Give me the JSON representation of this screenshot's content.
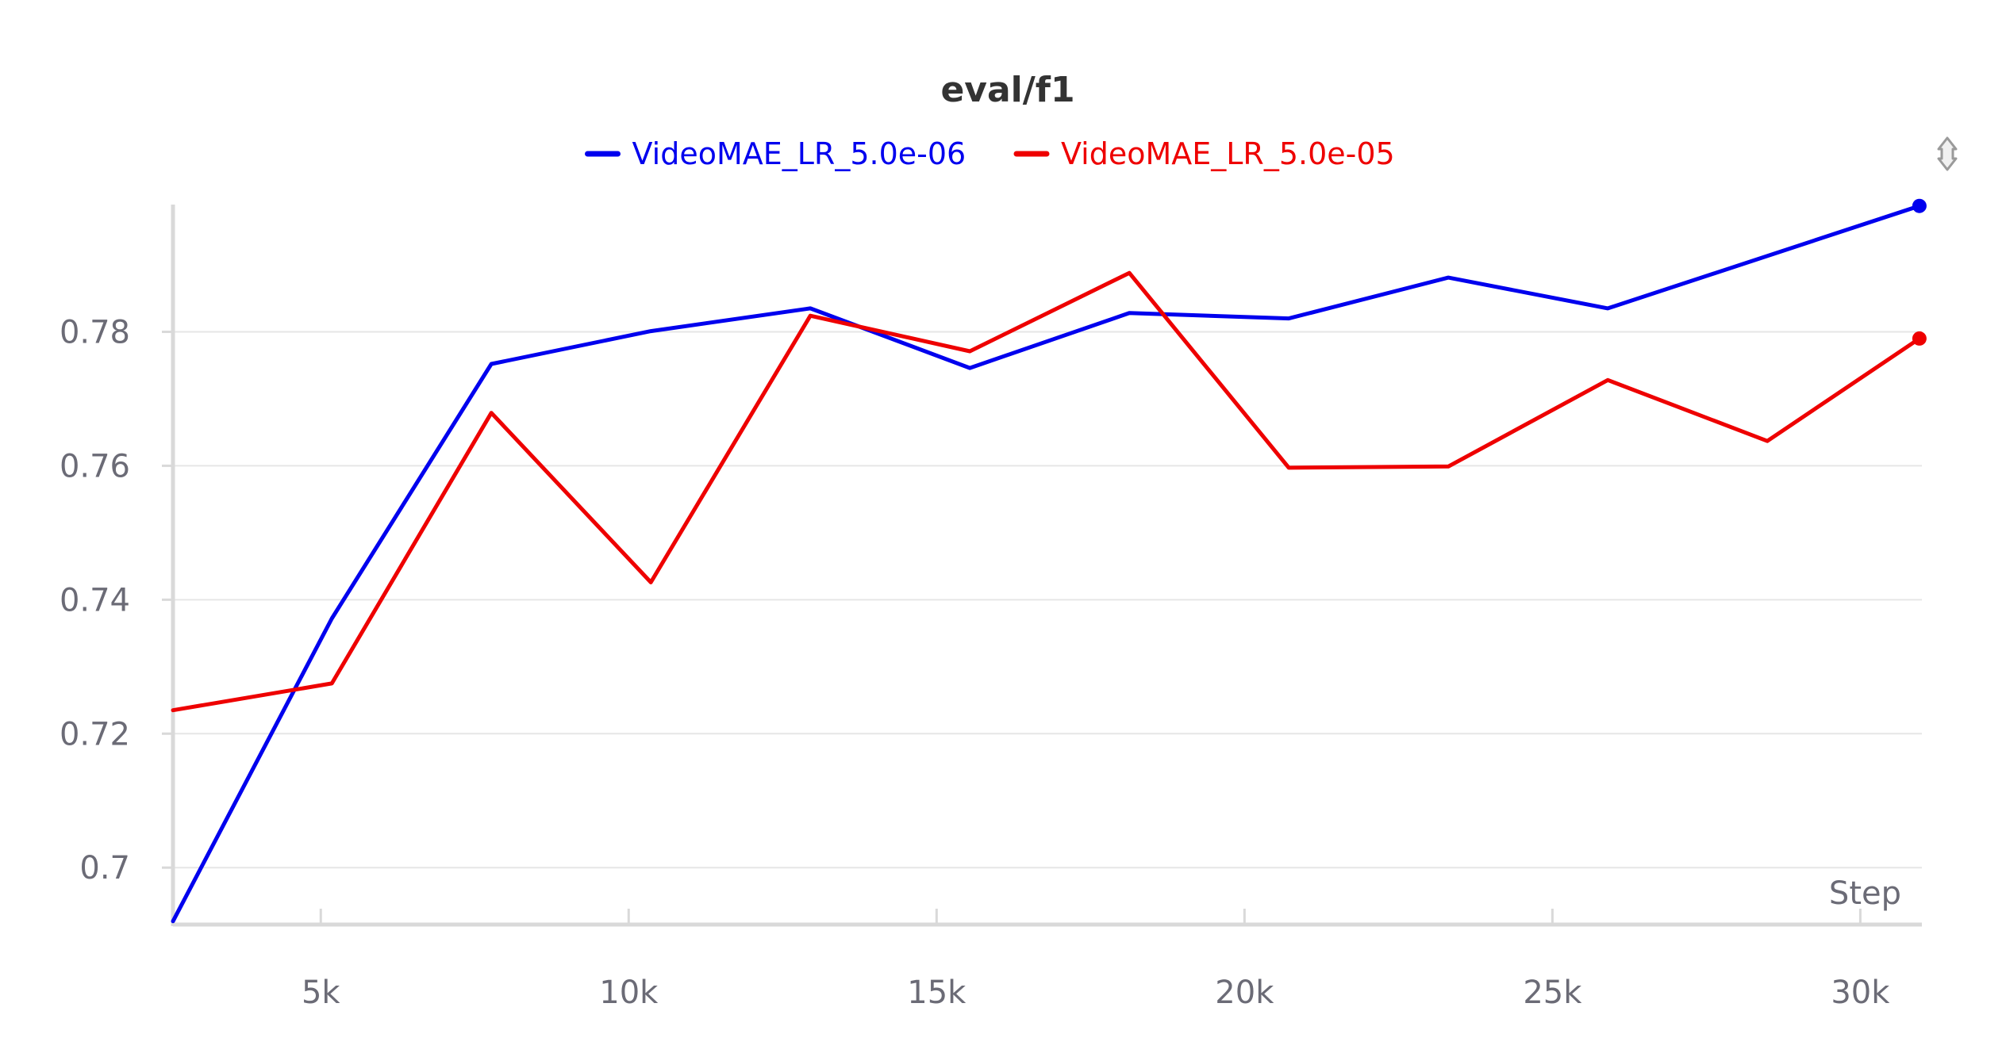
{
  "chart_data": {
    "type": "line",
    "title": "eval/f1",
    "xlabel": "Step",
    "ylabel": "",
    "xlim": [
      2600,
      31000
    ],
    "ylim": [
      0.6915,
      0.799
    ],
    "x_ticks": [
      5000,
      10000,
      15000,
      20000,
      25000,
      30000
    ],
    "x_tick_labels": [
      "5k",
      "10k",
      "15k",
      "20k",
      "25k",
      "30k"
    ],
    "y_ticks": [
      0.7,
      0.72,
      0.74,
      0.76,
      0.78
    ],
    "y_tick_labels": [
      "0.7",
      "0.72",
      "0.74",
      "0.76",
      "0.78"
    ],
    "grid": "horizontal",
    "legend_position": "top-center",
    "series": [
      {
        "name": "VideoMAE_LR_5.0e-06",
        "color": "#0000ee",
        "x": [
          2600,
          5180,
          7770,
          10360,
          12950,
          15540,
          18130,
          20720,
          23310,
          25900,
          30960
        ],
        "y": [
          0.692,
          0.7372,
          0.7752,
          0.7801,
          0.7835,
          0.7746,
          0.7828,
          0.782,
          0.7881,
          0.7835,
          0.7988
        ]
      },
      {
        "name": "VideoMAE_LR_5.0e-05",
        "color": "#ee0000",
        "x": [
          2600,
          5180,
          7770,
          10360,
          12950,
          15540,
          18130,
          20720,
          23310,
          25900,
          28490,
          30960
        ],
        "y": [
          0.7235,
          0.7275,
          0.7679,
          0.7426,
          0.7824,
          0.7771,
          0.7888,
          0.7597,
          0.7599,
          0.7728,
          0.7637,
          0.779
        ]
      }
    ]
  },
  "controls": {
    "icon": "expand-collapse-icon"
  }
}
